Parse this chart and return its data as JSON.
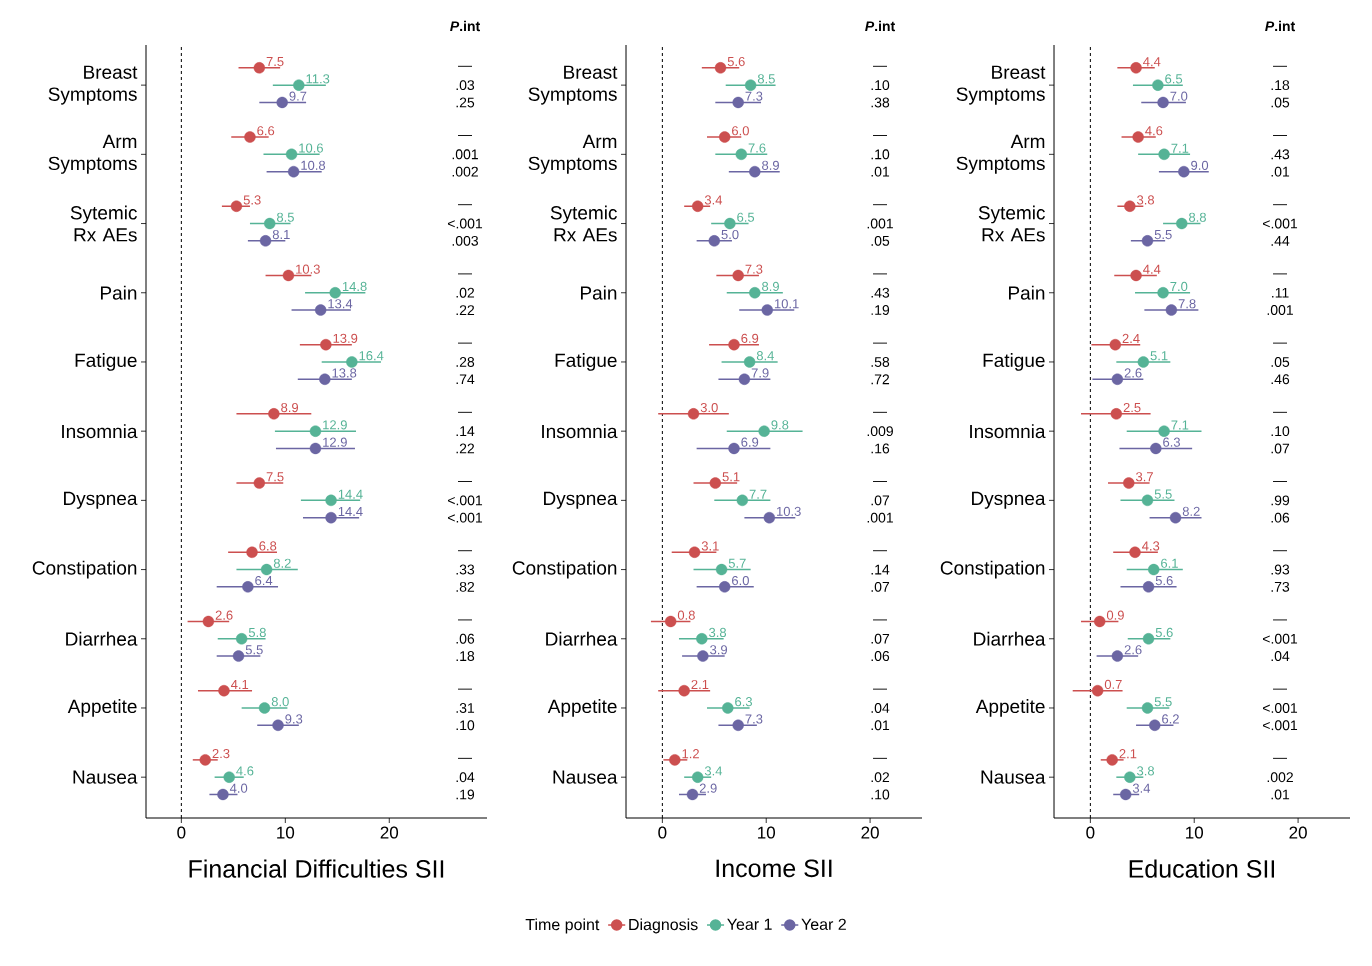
{
  "chart_data": [
    {
      "type": "scatter",
      "orientation": "horizontal",
      "xlabel": "Financial Difficulties SII",
      "categories": [
        "Breast Symptoms",
        "Arm Symptoms",
        "Sytemic Rx AEs",
        "Pain",
        "Fatigue",
        "Insomnia",
        "Dyspnea",
        "Constipation",
        "Diarrhea",
        "Appetite",
        "Nausea"
      ],
      "xlim": [
        -3.4,
        29.4
      ],
      "xticks": [
        0,
        10,
        20
      ],
      "marker": "circle",
      "ref_lines": [
        {
          "axis": "x",
          "value": 0,
          "line_style": "dashed",
          "color": "#000000"
        }
      ],
      "series": [
        {
          "color": "#cc4f4f",
          "values": [
            7.5,
            6.6,
            5.3,
            10.3,
            13.9,
            8.9,
            7.5,
            6.8,
            2.6,
            4.1,
            2.3
          ],
          "value_labels": [
            "7.5",
            "6.6",
            "5.3",
            "10.3",
            "13.9",
            "8.9",
            "7.5",
            "6.8",
            "2.6",
            "4.1",
            "2.3"
          ],
          "errors": [
            [
              5.5,
              9.5
            ],
            [
              4.8,
              8.4
            ],
            [
              3.9,
              6.6
            ],
            [
              8.1,
              12.5
            ],
            [
              11.4,
              16.4
            ],
            [
              5.3,
              12.5
            ],
            [
              5.3,
              9.8
            ],
            [
              4.5,
              9.2
            ],
            [
              0.6,
              4.6
            ],
            [
              1.6,
              6.8
            ],
            [
              1.1,
              3.5
            ]
          ]
        },
        {
          "color": "#55b396",
          "values": [
            11.3,
            10.6,
            8.5,
            14.8,
            16.4,
            12.9,
            14.4,
            8.2,
            5.8,
            8.0,
            4.6
          ],
          "value_labels": [
            "11.3",
            "10.6",
            "8.5",
            "14.8",
            "16.4",
            "12.9",
            "14.4",
            "8.2",
            "5.8",
            "8.0",
            "4.6"
          ],
          "errors": [
            [
              8.8,
              13.9
            ],
            [
              7.9,
              13.3
            ],
            [
              6.6,
              10.5
            ],
            [
              11.9,
              17.7
            ],
            [
              13.5,
              19.2
            ],
            [
              9.0,
              16.8
            ],
            [
              11.5,
              17.2
            ],
            [
              5.3,
              11.2
            ],
            [
              3.5,
              8.1
            ],
            [
              5.8,
              10.2
            ],
            [
              3.2,
              6.0
            ]
          ]
        },
        {
          "color": "#6b66a3",
          "values": [
            9.7,
            10.8,
            8.1,
            13.4,
            13.8,
            12.9,
            14.4,
            6.4,
            5.5,
            9.3,
            4.0
          ],
          "value_labels": [
            "9.7",
            "10.8",
            "8.1",
            "13.4",
            "13.8",
            "12.9",
            "14.4",
            "6.4",
            "5.5",
            "9.3",
            "4.0"
          ],
          "errors": [
            [
              7.5,
              12.0
            ],
            [
              8.2,
              13.5
            ],
            [
              6.4,
              10.0
            ],
            [
              10.6,
              16.3
            ],
            [
              11.2,
              16.4
            ],
            [
              9.1,
              16.7
            ],
            [
              11.7,
              17.1
            ],
            [
              3.4,
              9.3
            ],
            [
              3.4,
              7.6
            ],
            [
              7.3,
              11.3
            ],
            [
              2.7,
              5.4
            ]
          ]
        }
      ],
      "annotations": [
        "*P*.int",
        "—",
        ".03",
        ".25",
        "—",
        ".001",
        ".002",
        "—",
        "<.001",
        ".003",
        "—",
        ".02",
        ".22",
        "—",
        ".28",
        ".74",
        "—",
        ".14",
        ".22",
        "—",
        "<.001",
        "<.001",
        "—",
        ".33",
        ".82",
        "—",
        ".06",
        ".18",
        "—",
        ".31",
        ".10",
        "—",
        ".04",
        ".19"
      ]
    },
    {
      "type": "scatter",
      "orientation": "horizontal",
      "xlabel": "Income SII",
      "categories": [
        "Breast Symptoms",
        "Arm Symptoms",
        "Sytemic Rx AEs",
        "Pain",
        "Fatigue",
        "Insomnia",
        "Dyspnea",
        "Constipation",
        "Diarrhea",
        "Appetite",
        "Nausea"
      ],
      "xlim": [
        -3.5,
        25
      ],
      "xticks": [
        0,
        10,
        20
      ],
      "marker": "circle",
      "legend": "bottom",
      "legend_title": "Time point",
      "ref_lines": [
        {
          "axis": "x",
          "value": 0,
          "line_style": "dashed",
          "color": "#000000"
        }
      ],
      "series": [
        {
          "name": "Diagnosis",
          "color": "#cc4f4f",
          "values": [
            5.6,
            6.0,
            3.4,
            7.3,
            6.9,
            3.0,
            5.1,
            3.1,
            0.8,
            2.1,
            1.2
          ],
          "value_labels": [
            "5.6",
            "6.0",
            "3.4",
            "7.3",
            "6.9",
            "3.0",
            "5.1",
            "3.1",
            "0.8",
            "2.1",
            "1.2"
          ],
          "errors": [
            [
              3.8,
              7.4
            ],
            [
              4.3,
              7.6
            ],
            [
              2.1,
              4.6
            ],
            [
              5.2,
              9.3
            ],
            [
              4.5,
              9.3
            ],
            [
              -0.4,
              6.4
            ],
            [
              3.0,
              7.2
            ],
            [
              0.9,
              5.2
            ],
            [
              -1.1,
              2.7
            ],
            [
              -0.4,
              4.6
            ],
            [
              0.1,
              2.4
            ]
          ]
        },
        {
          "name": "Year 1",
          "color": "#55b396",
          "values": [
            8.5,
            7.6,
            6.5,
            8.9,
            8.4,
            9.8,
            7.7,
            5.7,
            3.8,
            6.3,
            3.4
          ],
          "value_labels": [
            "8.5",
            "7.6",
            "6.5",
            "8.9",
            "8.4",
            "9.8",
            "7.7",
            "5.7",
            "3.8",
            "6.3",
            "3.4"
          ],
          "errors": [
            [
              6.1,
              10.9
            ],
            [
              5.1,
              10.1
            ],
            [
              4.7,
              8.3
            ],
            [
              6.2,
              11.6
            ],
            [
              5.7,
              11.1
            ],
            [
              6.2,
              13.5
            ],
            [
              5.0,
              10.4
            ],
            [
              3.0,
              8.5
            ],
            [
              1.6,
              5.9
            ],
            [
              4.3,
              8.4
            ],
            [
              2.1,
              4.7
            ]
          ]
        },
        {
          "name": "Year 2",
          "color": "#6b66a3",
          "values": [
            7.3,
            8.9,
            5.0,
            10.1,
            7.9,
            6.9,
            10.3,
            6.0,
            3.9,
            7.3,
            2.9
          ],
          "value_labels": [
            "7.3",
            "8.9",
            "5.0",
            "10.1",
            "7.9",
            "6.9",
            "10.3",
            "6.0",
            "3.9",
            "7.3",
            "2.9"
          ],
          "errors": [
            [
              5.1,
              9.5
            ],
            [
              6.4,
              11.3
            ],
            [
              3.3,
              6.7
            ],
            [
              7.4,
              12.7
            ],
            [
              5.4,
              10.4
            ],
            [
              3.3,
              10.4
            ],
            [
              7.9,
              12.8
            ],
            [
              3.3,
              8.8
            ],
            [
              1.9,
              6.0
            ],
            [
              5.4,
              9.1
            ],
            [
              1.6,
              4.2
            ]
          ]
        }
      ],
      "annotations": [
        "*P*.int",
        "—",
        ".10",
        ".38",
        "—",
        ".10",
        ".01",
        "—",
        ".001",
        ".05",
        "—",
        ".43",
        ".19",
        "—",
        ".58",
        ".72",
        "—",
        ".009",
        ".16",
        "—",
        ".07",
        ".001",
        "—",
        ".14",
        ".07",
        "—",
        ".07",
        ".06",
        "—",
        ".04",
        ".01",
        "—",
        ".02",
        ".10"
      ]
    },
    {
      "type": "scatter",
      "orientation": "horizontal",
      "xlabel": "Education SII",
      "categories": [
        "Breast Symptoms",
        "Arm Symptoms",
        "Sytemic Rx AEs",
        "Pain",
        "Fatigue",
        "Insomnia",
        "Dyspnea",
        "Constipation",
        "Diarrhea",
        "Appetite",
        "Nausea"
      ],
      "xlim": [
        -3.5,
        25
      ],
      "xticks": [
        0,
        10,
        20
      ],
      "marker": "circle",
      "ref_lines": [
        {
          "axis": "x",
          "value": 0,
          "line_style": "dashed",
          "color": "#000000"
        }
      ],
      "series": [
        {
          "color": "#cc4f4f",
          "values": [
            4.4,
            4.6,
            3.8,
            4.4,
            2.4,
            2.5,
            3.7,
            4.3,
            0.9,
            0.7,
            2.1
          ],
          "value_labels": [
            "4.4",
            "4.6",
            "3.8",
            "4.4",
            "2.4",
            "2.5",
            "3.7",
            "4.3",
            "0.9",
            "0.7",
            "2.1"
          ],
          "errors": [
            [
              2.6,
              6.2
            ],
            [
              3.0,
              6.3
            ],
            [
              2.6,
              5.1
            ],
            [
              2.3,
              6.4
            ],
            [
              0.1,
              4.8
            ],
            [
              -0.9,
              5.8
            ],
            [
              1.7,
              5.7
            ],
            [
              2.2,
              6.5
            ],
            [
              -0.9,
              2.7
            ],
            [
              -1.7,
              3.1
            ],
            [
              1.0,
              3.2
            ]
          ]
        },
        {
          "color": "#55b396",
          "values": [
            6.5,
            7.1,
            8.8,
            7.0,
            5.1,
            7.1,
            5.5,
            6.1,
            5.6,
            5.5,
            3.8
          ],
          "value_labels": [
            "6.5",
            "7.1",
            "8.8",
            "7.0",
            "5.1",
            "7.1",
            "5.5",
            "6.1",
            "5.6",
            "5.5",
            "3.8"
          ],
          "errors": [
            [
              4.1,
              8.9
            ],
            [
              4.6,
              9.6
            ],
            [
              7.0,
              10.6
            ],
            [
              4.3,
              9.6
            ],
            [
              2.5,
              7.7
            ],
            [
              3.5,
              10.7
            ],
            [
              2.9,
              8.1
            ],
            [
              3.5,
              8.9
            ],
            [
              3.6,
              7.7
            ],
            [
              3.5,
              7.6
            ],
            [
              2.5,
              5.1
            ]
          ]
        },
        {
          "color": "#6b66a3",
          "values": [
            7.0,
            9.0,
            5.5,
            7.8,
            2.6,
            6.3,
            8.2,
            5.6,
            2.6,
            6.2,
            3.4
          ],
          "value_labels": [
            "7.0",
            "9.0",
            "5.5",
            "7.8",
            "2.6",
            "6.3",
            "8.2",
            "5.6",
            "2.6",
            "6.2",
            "3.4"
          ],
          "errors": [
            [
              4.9,
              9.2
            ],
            [
              6.6,
              11.4
            ],
            [
              3.9,
              7.2
            ],
            [
              5.2,
              10.4
            ],
            [
              0.2,
              5.1
            ],
            [
              2.8,
              9.8
            ],
            [
              5.7,
              10.7
            ],
            [
              2.9,
              8.3
            ],
            [
              0.6,
              4.6
            ],
            [
              4.4,
              8.0
            ],
            [
              2.2,
              4.7
            ]
          ]
        }
      ],
      "annotations": [
        "*P*.int",
        "—",
        ".18",
        ".05",
        "—",
        ".43",
        ".01",
        "—",
        "<.001",
        ".44",
        "—",
        ".11",
        ".001",
        "—",
        ".05",
        ".46",
        "—",
        ".10",
        ".07",
        "—",
        ".99",
        ".06",
        "—",
        ".93",
        ".73",
        "—",
        "<.001",
        ".04",
        "—",
        "<.001",
        "<.001",
        "—",
        ".002",
        ".01"
      ]
    }
  ]
}
